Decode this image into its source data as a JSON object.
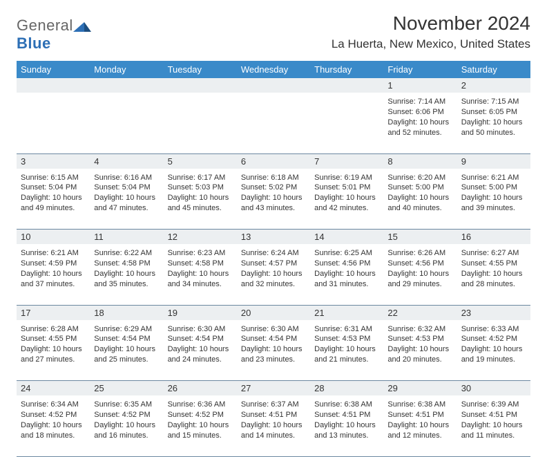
{
  "logo": {
    "general": "General",
    "blue": "Blue"
  },
  "header": {
    "month_title": "November 2024",
    "location": "La Huerta, New Mexico, United States"
  },
  "colors": {
    "header_blue": "#3a8ac9",
    "stripe_gray": "#eceff1",
    "border": "#6a87a0",
    "logo_blue": "#2d6fb5"
  },
  "calendar": {
    "type": "table",
    "day_names": [
      "Sunday",
      "Monday",
      "Tuesday",
      "Wednesday",
      "Thursday",
      "Friday",
      "Saturday"
    ],
    "weeks": [
      {
        "numbers": [
          "",
          "",
          "",
          "",
          "",
          "1",
          "2"
        ],
        "cells": [
          null,
          null,
          null,
          null,
          null,
          {
            "sunrise": "Sunrise: 7:14 AM",
            "sunset": "Sunset: 6:06 PM",
            "daylight": "Daylight: 10 hours and 52 minutes."
          },
          {
            "sunrise": "Sunrise: 7:15 AM",
            "sunset": "Sunset: 6:05 PM",
            "daylight": "Daylight: 10 hours and 50 minutes."
          }
        ]
      },
      {
        "numbers": [
          "3",
          "4",
          "5",
          "6",
          "7",
          "8",
          "9"
        ],
        "cells": [
          {
            "sunrise": "Sunrise: 6:15 AM",
            "sunset": "Sunset: 5:04 PM",
            "daylight": "Daylight: 10 hours and 49 minutes."
          },
          {
            "sunrise": "Sunrise: 6:16 AM",
            "sunset": "Sunset: 5:04 PM",
            "daylight": "Daylight: 10 hours and 47 minutes."
          },
          {
            "sunrise": "Sunrise: 6:17 AM",
            "sunset": "Sunset: 5:03 PM",
            "daylight": "Daylight: 10 hours and 45 minutes."
          },
          {
            "sunrise": "Sunrise: 6:18 AM",
            "sunset": "Sunset: 5:02 PM",
            "daylight": "Daylight: 10 hours and 43 minutes."
          },
          {
            "sunrise": "Sunrise: 6:19 AM",
            "sunset": "Sunset: 5:01 PM",
            "daylight": "Daylight: 10 hours and 42 minutes."
          },
          {
            "sunrise": "Sunrise: 6:20 AM",
            "sunset": "Sunset: 5:00 PM",
            "daylight": "Daylight: 10 hours and 40 minutes."
          },
          {
            "sunrise": "Sunrise: 6:21 AM",
            "sunset": "Sunset: 5:00 PM",
            "daylight": "Daylight: 10 hours and 39 minutes."
          }
        ]
      },
      {
        "numbers": [
          "10",
          "11",
          "12",
          "13",
          "14",
          "15",
          "16"
        ],
        "cells": [
          {
            "sunrise": "Sunrise: 6:21 AM",
            "sunset": "Sunset: 4:59 PM",
            "daylight": "Daylight: 10 hours and 37 minutes."
          },
          {
            "sunrise": "Sunrise: 6:22 AM",
            "sunset": "Sunset: 4:58 PM",
            "daylight": "Daylight: 10 hours and 35 minutes."
          },
          {
            "sunrise": "Sunrise: 6:23 AM",
            "sunset": "Sunset: 4:58 PM",
            "daylight": "Daylight: 10 hours and 34 minutes."
          },
          {
            "sunrise": "Sunrise: 6:24 AM",
            "sunset": "Sunset: 4:57 PM",
            "daylight": "Daylight: 10 hours and 32 minutes."
          },
          {
            "sunrise": "Sunrise: 6:25 AM",
            "sunset": "Sunset: 4:56 PM",
            "daylight": "Daylight: 10 hours and 31 minutes."
          },
          {
            "sunrise": "Sunrise: 6:26 AM",
            "sunset": "Sunset: 4:56 PM",
            "daylight": "Daylight: 10 hours and 29 minutes."
          },
          {
            "sunrise": "Sunrise: 6:27 AM",
            "sunset": "Sunset: 4:55 PM",
            "daylight": "Daylight: 10 hours and 28 minutes."
          }
        ]
      },
      {
        "numbers": [
          "17",
          "18",
          "19",
          "20",
          "21",
          "22",
          "23"
        ],
        "cells": [
          {
            "sunrise": "Sunrise: 6:28 AM",
            "sunset": "Sunset: 4:55 PM",
            "daylight": "Daylight: 10 hours and 27 minutes."
          },
          {
            "sunrise": "Sunrise: 6:29 AM",
            "sunset": "Sunset: 4:54 PM",
            "daylight": "Daylight: 10 hours and 25 minutes."
          },
          {
            "sunrise": "Sunrise: 6:30 AM",
            "sunset": "Sunset: 4:54 PM",
            "daylight": "Daylight: 10 hours and 24 minutes."
          },
          {
            "sunrise": "Sunrise: 6:30 AM",
            "sunset": "Sunset: 4:54 PM",
            "daylight": "Daylight: 10 hours and 23 minutes."
          },
          {
            "sunrise": "Sunrise: 6:31 AM",
            "sunset": "Sunset: 4:53 PM",
            "daylight": "Daylight: 10 hours and 21 minutes."
          },
          {
            "sunrise": "Sunrise: 6:32 AM",
            "sunset": "Sunset: 4:53 PM",
            "daylight": "Daylight: 10 hours and 20 minutes."
          },
          {
            "sunrise": "Sunrise: 6:33 AM",
            "sunset": "Sunset: 4:52 PM",
            "daylight": "Daylight: 10 hours and 19 minutes."
          }
        ]
      },
      {
        "numbers": [
          "24",
          "25",
          "26",
          "27",
          "28",
          "29",
          "30"
        ],
        "cells": [
          {
            "sunrise": "Sunrise: 6:34 AM",
            "sunset": "Sunset: 4:52 PM",
            "daylight": "Daylight: 10 hours and 18 minutes."
          },
          {
            "sunrise": "Sunrise: 6:35 AM",
            "sunset": "Sunset: 4:52 PM",
            "daylight": "Daylight: 10 hours and 16 minutes."
          },
          {
            "sunrise": "Sunrise: 6:36 AM",
            "sunset": "Sunset: 4:52 PM",
            "daylight": "Daylight: 10 hours and 15 minutes."
          },
          {
            "sunrise": "Sunrise: 6:37 AM",
            "sunset": "Sunset: 4:51 PM",
            "daylight": "Daylight: 10 hours and 14 minutes."
          },
          {
            "sunrise": "Sunrise: 6:38 AM",
            "sunset": "Sunset: 4:51 PM",
            "daylight": "Daylight: 10 hours and 13 minutes."
          },
          {
            "sunrise": "Sunrise: 6:38 AM",
            "sunset": "Sunset: 4:51 PM",
            "daylight": "Daylight: 10 hours and 12 minutes."
          },
          {
            "sunrise": "Sunrise: 6:39 AM",
            "sunset": "Sunset: 4:51 PM",
            "daylight": "Daylight: 10 hours and 11 minutes."
          }
        ]
      }
    ]
  }
}
